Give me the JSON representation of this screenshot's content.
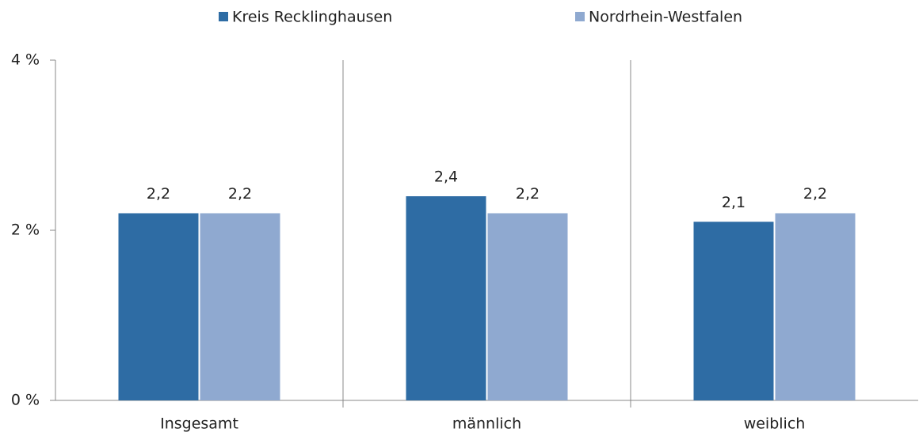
{
  "chart_data": {
    "type": "bar",
    "categories": [
      "Insgesamt",
      "männlich",
      "weiblich"
    ],
    "series": [
      {
        "name": "Kreis Recklinghausen",
        "color": "#2e6ca4",
        "values": [
          2.2,
          2.4,
          2.1
        ],
        "value_labels": [
          "2,2",
          "2,4",
          "2,1"
        ]
      },
      {
        "name": "Nordrhein-Westfalen",
        "color": "#8fa9d0",
        "values": [
          2.2,
          2.2,
          2.2
        ],
        "value_labels": [
          "2,2",
          "2,2",
          "2,2"
        ]
      }
    ],
    "ylim": [
      0,
      4
    ],
    "yticks": [
      {
        "value": 0,
        "label": "0 %"
      },
      {
        "value": 2,
        "label": "2 %"
      },
      {
        "value": 4,
        "label": "4 %"
      }
    ],
    "legend": "top"
  }
}
